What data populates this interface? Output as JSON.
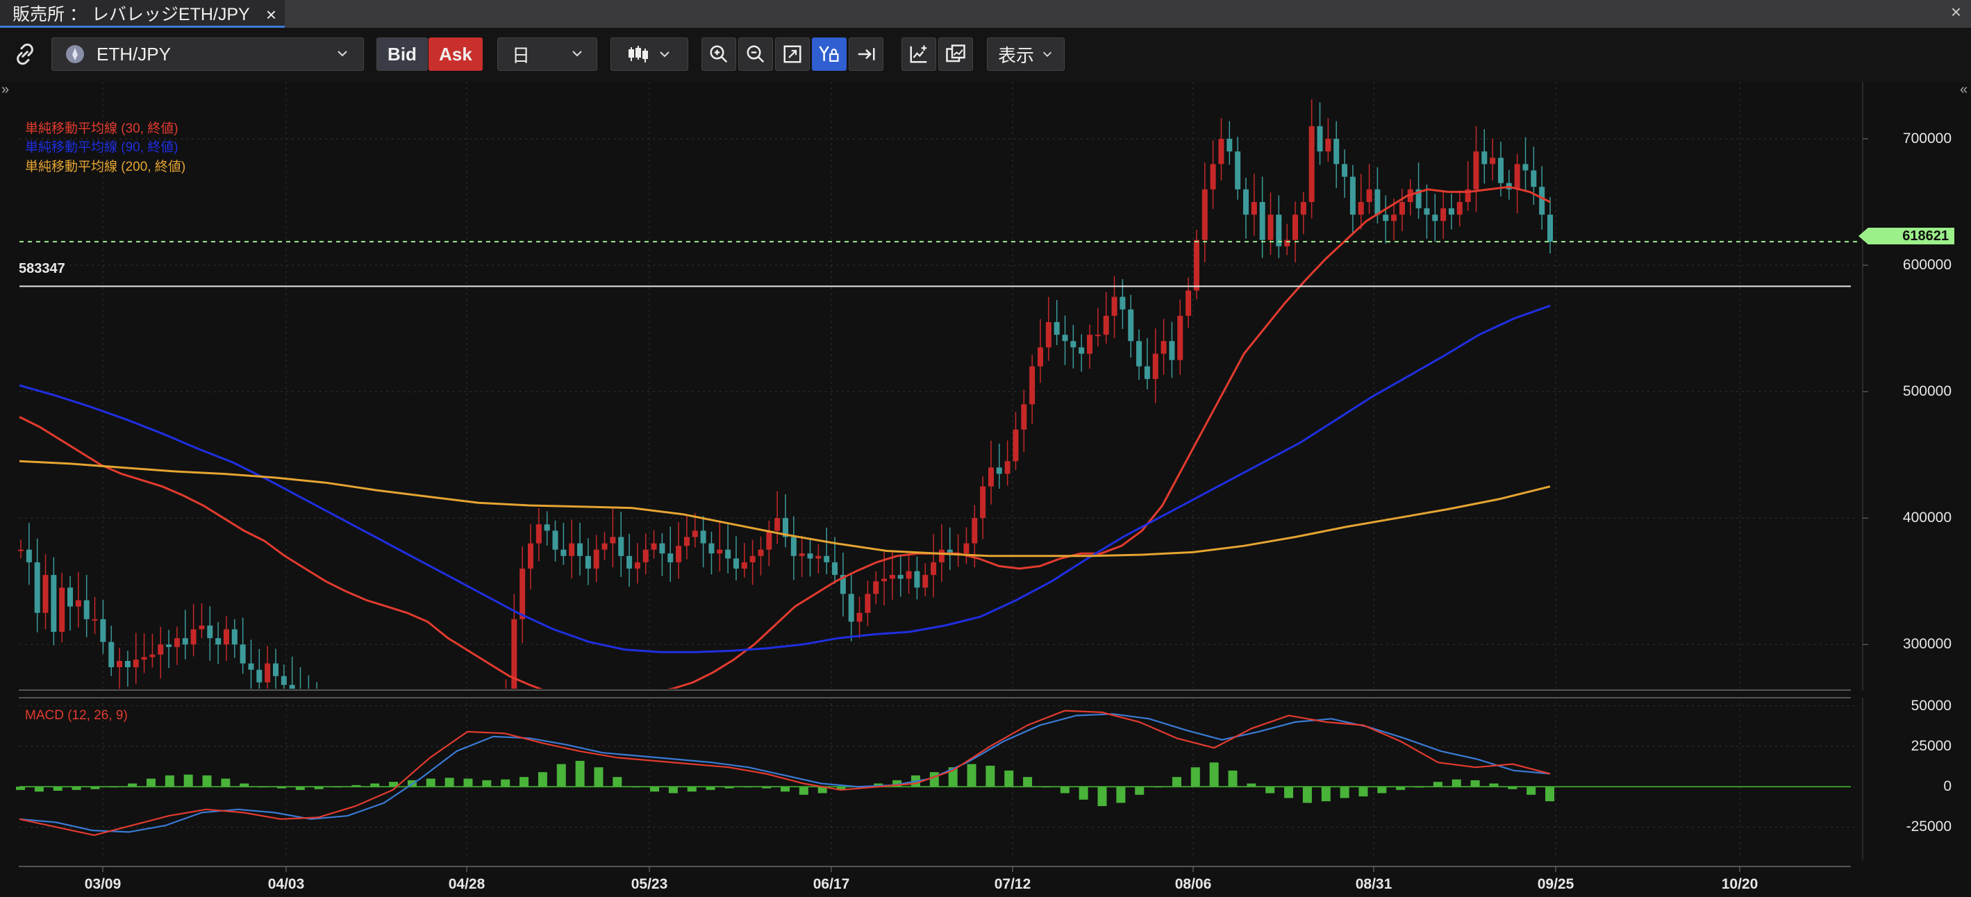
{
  "tab": {
    "title": "販売所 ： レバレッジETH/JPY",
    "close_label": "×"
  },
  "window": {
    "close_label": "×"
  },
  "toolbar": {
    "symbol": "ETH/JPY",
    "bid_label": "Bid",
    "ask_label": "Ask",
    "period": "日",
    "display_label": "表示",
    "icons": [
      "link-icon",
      "candlestick-icon",
      "zoom-in-icon",
      "zoom-out-icon",
      "fit-icon",
      "y-lock-icon",
      "scroll-to-end-icon",
      "add-indicator-icon",
      "compare-icon"
    ]
  },
  "colors": {
    "background": "#111111",
    "up_candle": "#c62828",
    "down_candle": "#3d9a9a",
    "sma30": "#e23b2f",
    "sma90": "#1f2fe0",
    "sma200": "#e6a532",
    "macd_line": "#e23b2f",
    "signal_line": "#3a7bd5",
    "histogram": "#49b33a",
    "current_price": "#9cf08a"
  },
  "legend": [
    {
      "label": "単純移動平均線 (30, 終値)",
      "color": "#e23b2f"
    },
    {
      "label": "単純移動平均線 (90, 終値)",
      "color": "#1f2fe0"
    },
    {
      "label": "単純移動平均線 (200, 終値)",
      "color": "#e6a532"
    }
  ],
  "horizontal_line_label": "583347",
  "current_price_label": "618621",
  "macd_label": "MACD (12, 26, 9)",
  "chart_data": {
    "type": "candlestick",
    "title": "",
    "y_axis": {
      "ticks": [
        "700000",
        "600000",
        "500000",
        "400000",
        "300000"
      ],
      "ylim": [
        265000,
        745000
      ]
    },
    "macd_axis": {
      "ticks": [
        "50000",
        "25000",
        "0",
        "-25000"
      ],
      "ylim": [
        -45000,
        55000
      ]
    },
    "x_axis": {
      "ticks": [
        "03/09",
        "04/03",
        "04/28",
        "05/23",
        "06/17",
        "07/12",
        "08/06",
        "08/31",
        "09/25",
        "10/20"
      ]
    },
    "current_price": 618621,
    "horizontal_line": 583347,
    "closes": [
      375000,
      365000,
      325000,
      355000,
      310000,
      345000,
      330000,
      335000,
      320000,
      320000,
      302000,
      282000,
      287000,
      282000,
      288000,
      290000,
      292000,
      300000,
      298000,
      305000,
      300000,
      312000,
      315000,
      305000,
      300000,
      312000,
      300000,
      285000,
      280000,
      270000,
      285000,
      275000,
      268000,
      262000,
      258000,
      255000,
      252000,
      248000,
      245000,
      240000,
      236000,
      232000,
      230000,
      228000,
      226000,
      224000,
      222000,
      220000,
      218000,
      218000,
      216000,
      215000,
      215000,
      217000,
      220000,
      222000,
      225000,
      230000,
      240000,
      250000,
      320000,
      360000,
      380000,
      395000,
      390000,
      375000,
      370000,
      380000,
      370000,
      360000,
      375000,
      380000,
      385000,
      370000,
      360000,
      365000,
      375000,
      380000,
      372000,
      365000,
      378000,
      385000,
      390000,
      380000,
      372000,
      375000,
      368000,
      360000,
      365000,
      370000,
      375000,
      390000,
      400000,
      385000,
      370000,
      372000,
      368000,
      370000,
      365000,
      355000,
      340000,
      318000,
      325000,
      340000,
      350000,
      352000,
      355000,
      352000,
      358000,
      345000,
      355000,
      365000,
      375000,
      372000,
      372000,
      380000,
      400000,
      425000,
      440000,
      435000,
      445000,
      470000,
      490000,
      520000,
      535000,
      555000,
      545000,
      540000,
      535000,
      530000,
      545000,
      545000,
      560000,
      575000,
      565000,
      540000,
      520000,
      510000,
      530000,
      540000,
      525000,
      560000,
      580000,
      620000,
      660000,
      680000,
      700000,
      690000,
      660000,
      640000,
      650000,
      620000,
      640000,
      615000,
      620000,
      640000,
      650000,
      710000,
      690000,
      700000,
      680000,
      670000,
      640000,
      650000,
      660000,
      640000,
      635000,
      640000,
      650000,
      660000,
      645000,
      640000,
      635000,
      645000,
      640000,
      650000,
      660000,
      690000,
      680000,
      685000,
      665000,
      660000,
      680000,
      675000,
      662000,
      640000,
      618621
    ],
    "series": [
      {
        "name": "単純移動平均線 (30, 終値)",
        "values": [
          480000,
          472000,
          462000,
          452000,
          442000,
          435000,
          430000,
          425000,
          418000,
          410000,
          400000,
          390000,
          382000,
          370000,
          360000,
          350000,
          342000,
          335000,
          330000,
          325000,
          318000,
          305000,
          295000,
          285000,
          275000,
          268000,
          262000,
          258000,
          258000,
          258000,
          260000,
          262000,
          265000,
          270000,
          278000,
          288000,
          300000,
          315000,
          330000,
          340000,
          350000,
          358000,
          365000,
          370000,
          372000,
          372000,
          372000,
          368000,
          362000,
          360000,
          362000,
          368000,
          372000,
          372000,
          378000,
          390000,
          410000,
          440000,
          470000,
          500000,
          530000,
          550000,
          570000,
          588000,
          605000,
          620000,
          635000,
          645000,
          655000,
          660000,
          658000,
          658000,
          660000,
          662000,
          658000,
          650000
        ]
      },
      {
        "name": "単純移動平均線 (90, 終値)",
        "values": [
          505000,
          497000,
          488000,
          478000,
          467000,
          455000,
          444000,
          430000,
          415000,
          400000,
          385000,
          370000,
          355000,
          340000,
          325000,
          312000,
          302000,
          296000,
          294000,
          294000,
          295000,
          297000,
          300000,
          305000,
          308000,
          310000,
          315000,
          322000,
          335000,
          350000,
          368000,
          385000,
          400000,
          415000,
          430000,
          445000,
          460000,
          478000,
          496000,
          512000,
          528000,
          545000,
          558000,
          568000
        ]
      },
      {
        "name": "単純移動平均線 (200, 終値)",
        "values": [
          445000,
          443000,
          440000,
          437000,
          435000,
          432000,
          428000,
          422000,
          417000,
          412000,
          410000,
          409000,
          408000,
          403000,
          395000,
          387000,
          380000,
          374000,
          372000,
          370000,
          370000,
          370000,
          371000,
          373000,
          378000,
          385000,
          393000,
          400000,
          407000,
          415000,
          425000
        ]
      }
    ],
    "macd": {
      "macd_line": [
        -20000,
        -25000,
        -30000,
        -24000,
        -18000,
        -14000,
        -16000,
        -20000,
        -19000,
        -12000,
        -2000,
        18000,
        34000,
        33000,
        27000,
        22000,
        18000,
        16000,
        14000,
        12000,
        8000,
        2000,
        -2000,
        0,
        2000,
        10000,
        25000,
        38000,
        47000,
        46000,
        40000,
        30000,
        24000,
        36000,
        44000,
        40000,
        38000,
        28000,
        15000,
        12000,
        14000,
        8000
      ],
      "signal_line": [
        -20000,
        -22000,
        -27000,
        -28000,
        -24000,
        -16000,
        -14000,
        -16000,
        -20000,
        -18000,
        -10000,
        5000,
        22000,
        31000,
        30000,
        26000,
        21000,
        19000,
        17000,
        15000,
        12000,
        7000,
        2000,
        0,
        1000,
        5000,
        15000,
        28000,
        38000,
        44000,
        45000,
        42000,
        35000,
        29000,
        34000,
        40000,
        42000,
        37000,
        30000,
        22000,
        17000,
        10000,
        8000
      ],
      "histogram": [
        -2000,
        -3000,
        -2500,
        -2000,
        -1500,
        0,
        2000,
        5000,
        7000,
        7500,
        7000,
        5000,
        2000,
        0,
        -1000,
        -2000,
        -1500,
        0,
        1000,
        2000,
        3000,
        4000,
        5000,
        5500,
        5000,
        4000,
        4500,
        6000,
        9000,
        14000,
        16000,
        12000,
        6000,
        0,
        -3000,
        -4000,
        -3000,
        -2000,
        -1000,
        0,
        -1000,
        -3000,
        -5000,
        -4000,
        -2000,
        0,
        2000,
        4000,
        7000,
        9000,
        12000,
        14000,
        13000,
        10000,
        6000,
        0,
        -4000,
        -8000,
        -12000,
        -10000,
        -5000,
        0,
        6000,
        12000,
        15000,
        10000,
        2000,
        -4000,
        -7000,
        -10000,
        -9000,
        -7000,
        -6000,
        -4000,
        -2000,
        -500,
        3000,
        4500,
        4000,
        2000,
        -1500,
        -5000,
        -9000
      ]
    }
  }
}
